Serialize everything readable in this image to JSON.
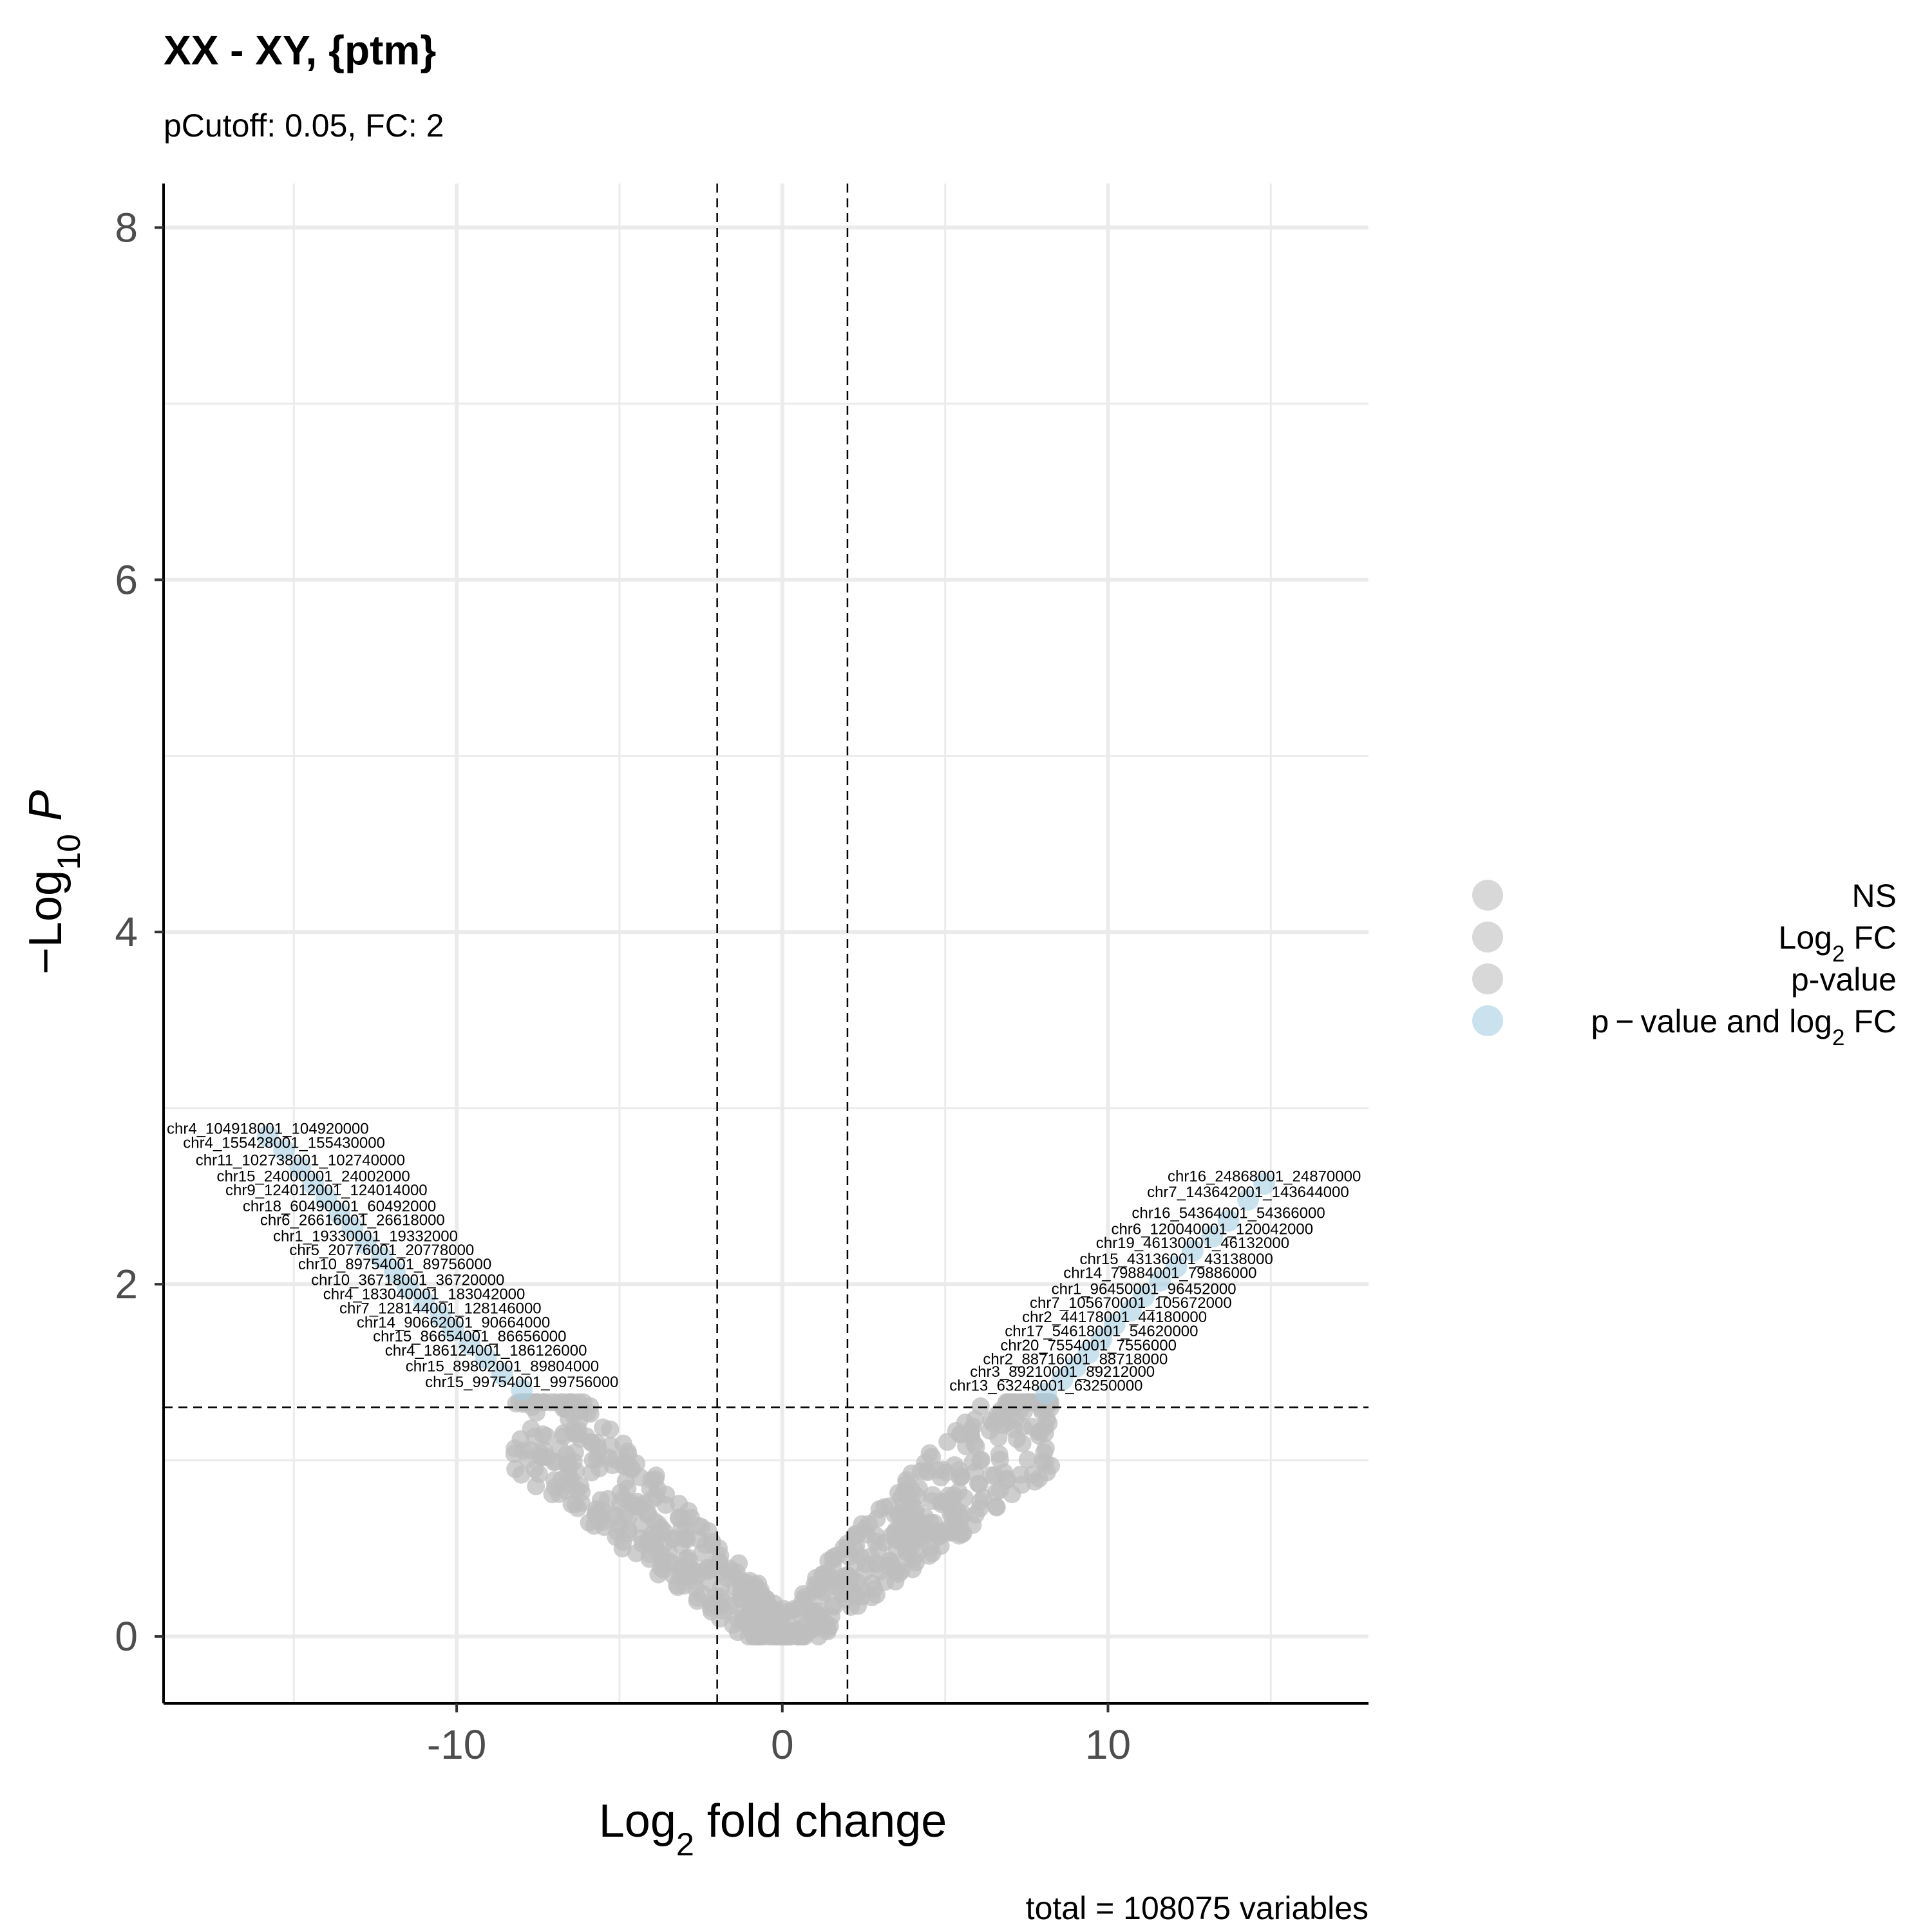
{
  "chart_data": {
    "type": "scatter",
    "title": "XX - XY, {ptm}",
    "subtitle": "pCutoff: 0.05, FC: 2",
    "caption": "total = 108075 variables",
    "xlabel": {
      "prefix": "Log",
      "sub": "2",
      "suffix": " fold change"
    },
    "ylabel": {
      "prefix": "−Log",
      "sub": "10",
      "suffix": " ",
      "italic": "P"
    },
    "xlim": [
      -19,
      18
    ],
    "ylim": [
      -0.38,
      8.25
    ],
    "x_ticks": [
      -10,
      0,
      10
    ],
    "x_tick_labels": [
      "-10",
      "0",
      "10"
    ],
    "y_ticks": [
      0,
      2,
      4,
      6,
      8
    ],
    "y_tick_labels": [
      "0",
      "2",
      "4",
      "6",
      "8"
    ],
    "grid": true,
    "cutoffs": {
      "log2fc": [
        -2,
        2
      ],
      "neg_log10_p": 1.301
    },
    "colors": {
      "ns": "#bebebe",
      "sig": "#a6cee3",
      "label": "#000000",
      "cutoff": "#000000"
    },
    "legend": {
      "position": "right",
      "items": [
        {
          "key": "ns",
          "text": "NS",
          "color": "#bebebe"
        },
        {
          "key": "fc",
          "text": "Log",
          "sub": "2",
          "suffix": " FC",
          "color": "#bebebe"
        },
        {
          "key": "p",
          "text": "p-value",
          "color": "#bebebe"
        },
        {
          "key": "both",
          "text": "p − value and log",
          "sub": "2",
          "suffix": " FC",
          "color": "#a6cee3"
        }
      ]
    },
    "ns_density": {
      "v_shape_slope": 0.165,
      "max_abs_x": 8.3
    },
    "labeled_points": [
      {
        "label": "chr4_104918001_104920000",
        "x": -15.8,
        "y": 2.84
      },
      {
        "label": "chr4_155428001_155430000",
        "x": -15.3,
        "y": 2.76
      },
      {
        "label": "chr11_102738001_102740000",
        "x": -14.8,
        "y": 2.66
      },
      {
        "label": "chr15_24000001_24002000",
        "x": -14.4,
        "y": 2.57
      },
      {
        "label": "chr9_124012001_124014000",
        "x": -14.0,
        "y": 2.49
      },
      {
        "label": "chr18_60490001_60492000",
        "x": -13.6,
        "y": 2.4
      },
      {
        "label": "chr6_26616001_26618000",
        "x": -13.2,
        "y": 2.32
      },
      {
        "label": "chr1_19330001_19332000",
        "x": -12.8,
        "y": 2.23
      },
      {
        "label": "chr5_20776001_20778000",
        "x": -12.3,
        "y": 2.15
      },
      {
        "label": "chr10_89754001_89756000",
        "x": -11.9,
        "y": 2.07
      },
      {
        "label": "chr10_36718001_36720000",
        "x": -11.5,
        "y": 1.98
      },
      {
        "label": "chr4_183040001_183042000",
        "x": -11.0,
        "y": 1.9
      },
      {
        "label": "chr7_128144001_128146000",
        "x": -10.5,
        "y": 1.82
      },
      {
        "label": "chr14_90662001_90664000",
        "x": -10.1,
        "y": 1.74
      },
      {
        "label": "chr15_86654001_86656000",
        "x": -9.6,
        "y": 1.66
      },
      {
        "label": "chr4_186124001_186126000",
        "x": -9.1,
        "y": 1.58
      },
      {
        "label": "chr15_89802001_89804000",
        "x": -8.6,
        "y": 1.49
      },
      {
        "label": "chr15_99754001_99756000",
        "x": -8.0,
        "y": 1.4
      },
      {
        "label": "chr16_24868001_24870000",
        "x": 14.8,
        "y": 2.57
      },
      {
        "label": "chr7_143642001_143644000",
        "x": 14.3,
        "y": 2.48
      },
      {
        "label": "chr16_54364001_54366000",
        "x": 13.7,
        "y": 2.36
      },
      {
        "label": "chr6_120040001_120042000",
        "x": 13.2,
        "y": 2.27
      },
      {
        "label": "chr19_46130001_46132000",
        "x": 12.6,
        "y": 2.19
      },
      {
        "label": "chr15_43136001_43138000",
        "x": 12.1,
        "y": 2.1
      },
      {
        "label": "chr14_79884001_79886000",
        "x": 11.6,
        "y": 2.02
      },
      {
        "label": "chr1_96450001_96452000",
        "x": 11.1,
        "y": 1.93
      },
      {
        "label": "chr7_105670001_105672000",
        "x": 10.7,
        "y": 1.85
      },
      {
        "label": "chr2_44178001_44180000",
        "x": 10.2,
        "y": 1.77
      },
      {
        "label": "chr17_54618001_54620000",
        "x": 9.8,
        "y": 1.69
      },
      {
        "label": "chr20_7554001_7556000",
        "x": 9.4,
        "y": 1.61
      },
      {
        "label": "chr2_88716001_88718000",
        "x": 9.0,
        "y": 1.53
      },
      {
        "label": "chr3_89210001_89212000",
        "x": 8.6,
        "y": 1.46
      },
      {
        "label": "chr13_63248001_63250000",
        "x": 8.1,
        "y": 1.38
      }
    ]
  }
}
